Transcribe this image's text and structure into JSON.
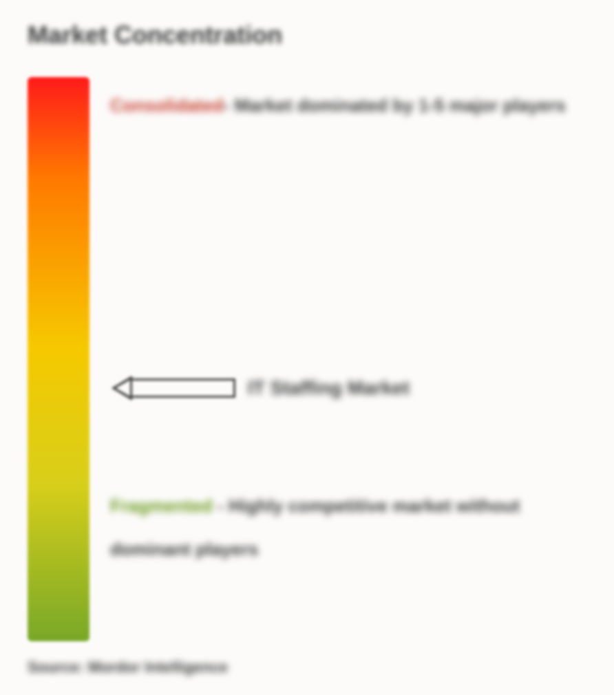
{
  "title": "Market Concentration",
  "gradient": {
    "top_color": "#ff1a1a",
    "mid1_color": "#ff7a00",
    "mid2_color": "#f6c900",
    "mid3_color": "#d8cf1a",
    "bottom_color": "#78a828"
  },
  "consolidated": {
    "label": "Consolidated",
    "label_color": "#c73f2f",
    "text": "- Market dominated by 1-5 major players"
  },
  "marker": {
    "label": "IT Staffing Market"
  },
  "fragmented": {
    "label": "Fragmented",
    "label_color": "#6b9a1e",
    "text": "- Highly competitive market without dominant players"
  },
  "source": "Source: Mordor Intelligence",
  "text_color": "#3b3b3b",
  "background_color": "#fcfbfa"
}
